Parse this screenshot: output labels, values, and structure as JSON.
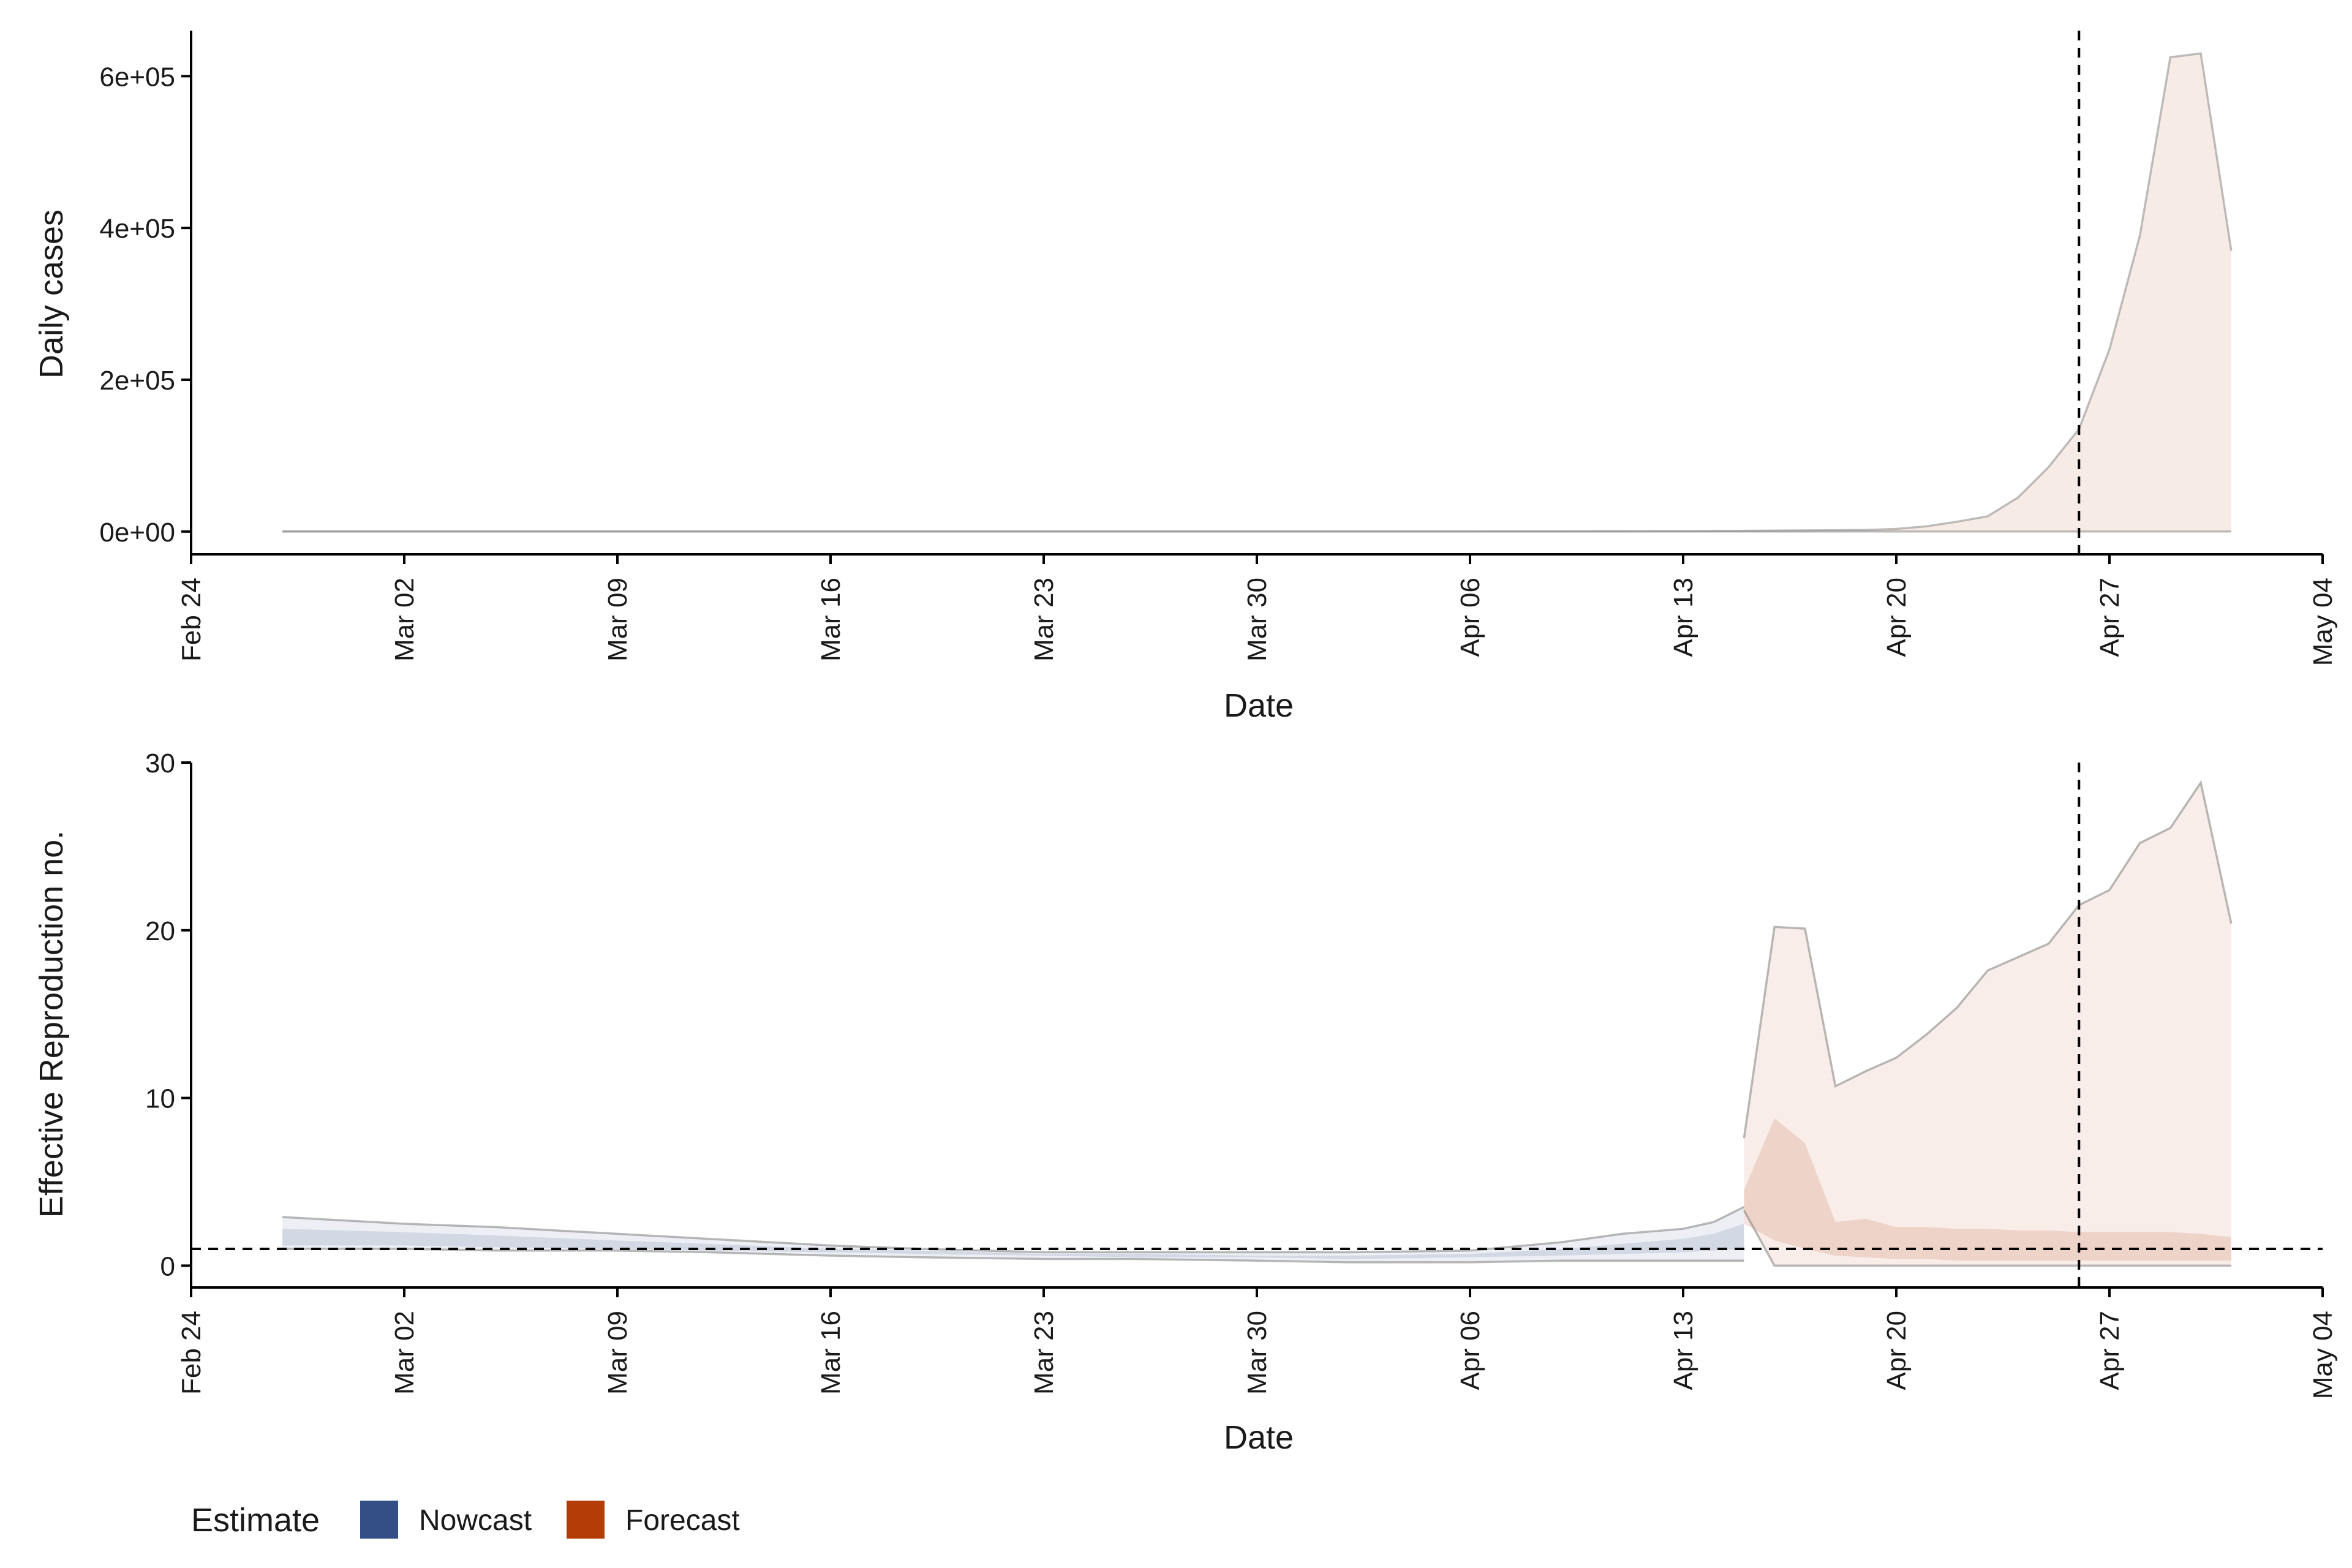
{
  "legend": {
    "title": "Estimate",
    "items": [
      {
        "label": "Nowcast",
        "color": "#344e86"
      },
      {
        "label": "Forecast",
        "color": "#b43c06"
      }
    ]
  },
  "colors": {
    "nowcast_fill": "#344e86",
    "forecast_fill": "#b43c06",
    "band_outline": "#7f7f7f",
    "axis": "#000000"
  },
  "chart_data": [
    {
      "type": "area",
      "title": "",
      "xlabel": "Date",
      "ylabel": "Daily cases",
      "x_ticks": [
        "Feb 24",
        "Mar 02",
        "Mar 09",
        "Mar 16",
        "Mar 23",
        "Mar 30",
        "Apr 06",
        "Apr 13",
        "Apr 20",
        "Apr 27",
        "May 04"
      ],
      "y_ticks": [
        "0e+00",
        "2e+05",
        "4e+05",
        "6e+05"
      ],
      "x_range": [
        "2020-02-24",
        "2020-05-04"
      ],
      "ylim": [
        -30000,
        660000
      ],
      "reference_lines": [
        {
          "orientation": "vertical",
          "date": "2020-04-26",
          "style": "dashed"
        }
      ],
      "series": [
        {
          "name": "Nowcast",
          "dates": [
            "2020-02-27",
            "2020-03-05",
            "2020-03-12",
            "2020-03-19",
            "2020-03-26",
            "2020-04-02",
            "2020-04-09",
            "2020-04-13",
            "2020-04-15"
          ],
          "lower": [
            0,
            0,
            0,
            0,
            0,
            0,
            0,
            0,
            0
          ],
          "upper": [
            0,
            0,
            0,
            0,
            0,
            0,
            300,
            500,
            800
          ]
        },
        {
          "name": "Forecast",
          "dates": [
            "2020-04-15",
            "2020-04-17",
            "2020-04-19",
            "2020-04-20",
            "2020-04-21",
            "2020-04-22",
            "2020-04-23",
            "2020-04-24",
            "2020-04-25",
            "2020-04-26",
            "2020-04-27",
            "2020-04-28",
            "2020-04-29",
            "2020-04-30",
            "2020-05-01"
          ],
          "lower": [
            0,
            0,
            0,
            0,
            0,
            0,
            0,
            0,
            0,
            0,
            0,
            0,
            0,
            0,
            0
          ],
          "upper": [
            1000,
            1500,
            2000,
            3500,
            7000,
            13000,
            20000,
            45000,
            85000,
            135000,
            240000,
            390000,
            625000,
            630000,
            370000
          ]
        }
      ]
    },
    {
      "type": "area",
      "title": "",
      "xlabel": "Date",
      "ylabel": "Effective Reproduction no.",
      "x_ticks": [
        "Feb 24",
        "Mar 02",
        "Mar 09",
        "Mar 16",
        "Mar 23",
        "Mar 30",
        "Apr 06",
        "Apr 13",
        "Apr 20",
        "Apr 27",
        "May 04"
      ],
      "y_ticks": [
        "0",
        "10",
        "20",
        "30"
      ],
      "x_range": [
        "2020-02-24",
        "2020-05-04"
      ],
      "ylim": [
        -1.3,
        30
      ],
      "reference_lines": [
        {
          "orientation": "vertical",
          "date": "2020-04-26",
          "style": "dashed"
        },
        {
          "orientation": "horizontal",
          "value": 1,
          "style": "dashed"
        }
      ],
      "series": [
        {
          "name": "Nowcast",
          "dates": [
            "2020-02-27",
            "2020-03-02",
            "2020-03-05",
            "2020-03-09",
            "2020-03-12",
            "2020-03-16",
            "2020-03-19",
            "2020-03-23",
            "2020-03-26",
            "2020-03-30",
            "2020-04-02",
            "2020-04-06",
            "2020-04-09",
            "2020-04-11",
            "2020-04-13",
            "2020-04-14",
            "2020-04-15"
          ],
          "outer_lower": [
            1.0,
            1.0,
            0.9,
            0.9,
            0.8,
            0.6,
            0.5,
            0.4,
            0.4,
            0.3,
            0.2,
            0.2,
            0.3,
            0.3,
            0.3,
            0.3,
            0.3
          ],
          "outer_upper": [
            2.9,
            2.5,
            2.3,
            1.9,
            1.6,
            1.2,
            1.0,
            0.8,
            0.8,
            0.8,
            0.8,
            0.9,
            1.4,
            1.9,
            2.2,
            2.6,
            3.5
          ],
          "inner_lower": [
            1.2,
            1.2,
            1.1,
            1.0,
            0.9,
            0.8,
            0.7,
            0.6,
            0.5,
            0.5,
            0.4,
            0.5,
            0.6,
            0.7,
            0.8,
            0.9,
            1.0
          ],
          "inner_upper": [
            2.2,
            2.0,
            1.8,
            1.5,
            1.3,
            1.0,
            0.9,
            0.7,
            0.7,
            0.6,
            0.6,
            0.7,
            1.0,
            1.3,
            1.6,
            1.9,
            2.5
          ]
        },
        {
          "name": "Forecast",
          "dates": [
            "2020-04-15",
            "2020-04-16",
            "2020-04-17",
            "2020-04-18",
            "2020-04-19",
            "2020-04-20",
            "2020-04-21",
            "2020-04-22",
            "2020-04-23",
            "2020-04-24",
            "2020-04-25",
            "2020-04-26",
            "2020-04-27",
            "2020-04-28",
            "2020-04-29",
            "2020-04-30",
            "2020-05-01"
          ],
          "outer_lower": [
            3.3,
            0,
            0,
            0,
            0,
            0,
            0,
            0,
            0,
            0,
            0,
            0,
            0,
            0,
            0,
            0,
            0
          ],
          "outer_upper": [
            7.6,
            20.2,
            20.1,
            10.7,
            11.6,
            12.4,
            13.8,
            15.4,
            17.6,
            18.4,
            19.2,
            21.5,
            22.4,
            25.2,
            26.1,
            28.8,
            20.4
          ],
          "inner_lower": [
            2.5,
            1.5,
            1.0,
            0.6,
            0.5,
            0.4,
            0.4,
            0.3,
            0.3,
            0.3,
            0.3,
            0.3,
            0.3,
            0.3,
            0.3,
            0.3,
            0.3
          ],
          "inner_upper": [
            4.5,
            8.8,
            7.3,
            2.6,
            2.8,
            2.3,
            2.3,
            2.2,
            2.2,
            2.1,
            2.1,
            2.0,
            2.0,
            2.0,
            2.0,
            1.9,
            1.7
          ]
        }
      ]
    }
  ]
}
